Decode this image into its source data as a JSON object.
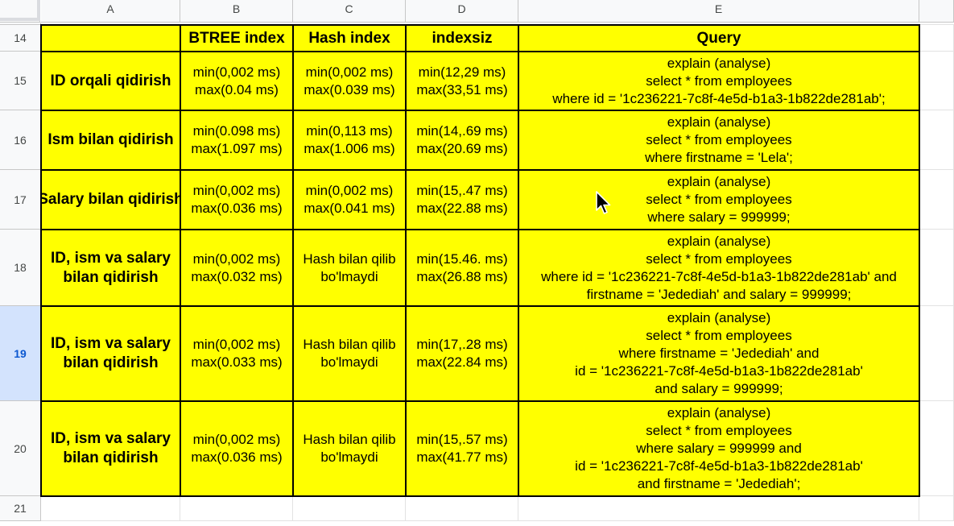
{
  "columns": [
    "A",
    "B",
    "C",
    "D",
    "E"
  ],
  "rows": [
    "14",
    "15",
    "16",
    "17",
    "18",
    "19",
    "20",
    "21"
  ],
  "selected_row": "19",
  "colors": {
    "cell_fill": "#ffff00",
    "header_bg": "#f8f9fa",
    "selected_row_bg": "#d3e3fd",
    "selected_row_text": "#0b57d0"
  },
  "table": {
    "headers": [
      "",
      "BTREE index",
      "Hash index",
      "indexsiz",
      "Query"
    ],
    "rows": [
      {
        "label": [
          "ID orqali qidirish"
        ],
        "btree": [
          "min(0,002 ms)",
          "max(0.04 ms)"
        ],
        "hash": [
          "min(0,002 ms)",
          "max(0.039 ms)"
        ],
        "indexsiz": [
          "min(12,29 ms)",
          "max(33,51 ms)"
        ],
        "query": [
          "explain (analyse)",
          "select * from employees",
          "where id = '1c236221-7c8f-4e5d-b1a3-1b822de281ab';"
        ]
      },
      {
        "label": [
          "Ism bilan qidirish"
        ],
        "btree": [
          "min(0.098 ms)",
          "max(1.097 ms)"
        ],
        "hash": [
          "min(0,113 ms)",
          "max(1.006 ms)"
        ],
        "indexsiz": [
          "min(14,.69 ms)",
          "max(20.69 ms)"
        ],
        "query": [
          "explain (analyse)",
          "select * from employees",
          "where firstname = 'Lela';"
        ]
      },
      {
        "label": [
          "Salary bilan qidirish"
        ],
        "btree": [
          "min(0,002 ms)",
          "max(0.036 ms)"
        ],
        "hash": [
          "min(0,002 ms)",
          "max(0.041 ms)"
        ],
        "indexsiz": [
          "min(15,.47 ms)",
          "max(22.88 ms)"
        ],
        "query": [
          "explain (analyse)",
          "select * from employees",
          "where salary = 999999;"
        ]
      },
      {
        "label": [
          "ID, ism va salary",
          "bilan qidirish"
        ],
        "btree": [
          "min(0,002 ms)",
          "max(0.032 ms)"
        ],
        "hash": [
          "Hash bilan qilib",
          "bo'lmaydi"
        ],
        "indexsiz": [
          "min(15.46. ms)",
          "max(26.88 ms)"
        ],
        "query": [
          "explain (analyse)",
          "select * from employees",
          "where id = '1c236221-7c8f-4e5d-b1a3-1b822de281ab' and",
          "firstname = 'Jedediah' and salary = 999999;"
        ]
      },
      {
        "label": [
          "ID, ism va salary",
          "bilan qidirish"
        ],
        "btree": [
          "min(0,002 ms)",
          "max(0.033 ms)"
        ],
        "hash": [
          "Hash bilan qilib",
          "bo'lmaydi"
        ],
        "indexsiz": [
          "min(17,.28 ms)",
          "max(22.84 ms)"
        ],
        "query": [
          "explain (analyse)",
          "select * from employees",
          "where firstname = 'Jedediah' and",
          "id = '1c236221-7c8f-4e5d-b1a3-1b822de281ab'",
          "and salary = 999999;"
        ]
      },
      {
        "label": [
          "ID, ism va salary",
          "bilan qidirish"
        ],
        "btree": [
          "min(0,002 ms)",
          "max(0.036 ms)"
        ],
        "hash": [
          "Hash bilan qilib",
          "bo'lmaydi"
        ],
        "indexsiz": [
          "min(15,.57 ms)",
          "max(41.77 ms)"
        ],
        "query": [
          "explain (analyse)",
          "select * from employees",
          "where salary = 999999 and",
          "id = '1c236221-7c8f-4e5d-b1a3-1b822de281ab'",
          "and firstname = 'Jedediah';"
        ]
      }
    ]
  }
}
